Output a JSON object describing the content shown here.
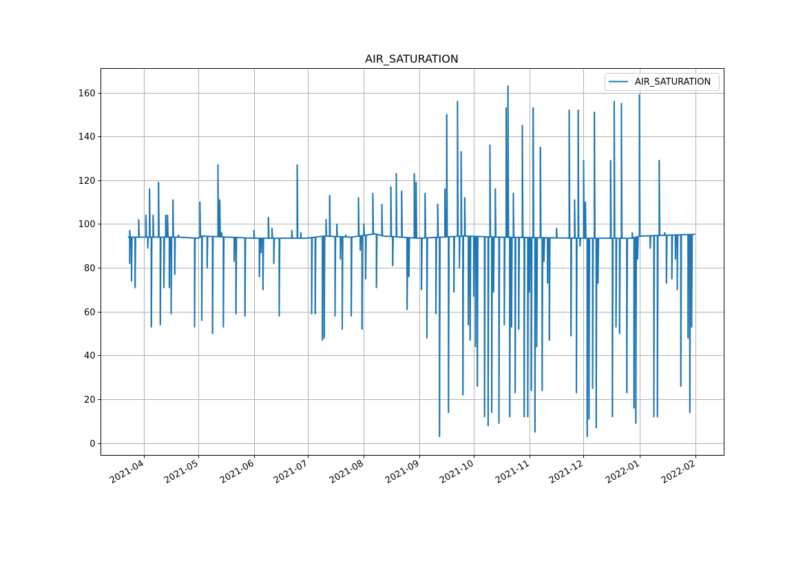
{
  "chart_data": {
    "type": "line",
    "title": "AIR_SATURATION",
    "xlabel": "",
    "ylabel": "",
    "xlim": [
      "2021-03-08",
      "2022-02-17"
    ],
    "ylim": [
      -5.6,
      171
    ],
    "grid": true,
    "legend": {
      "placement": "top-right",
      "entries": [
        "AIR_SATURATION"
      ]
    },
    "color": "#1f77b4",
    "x_ticks": [
      {
        "date": "2021-04-01",
        "label": "2021-04"
      },
      {
        "date": "2021-05-01",
        "label": "2021-05"
      },
      {
        "date": "2021-06-01",
        "label": "2021-06"
      },
      {
        "date": "2021-07-01",
        "label": "2021-07"
      },
      {
        "date": "2021-08-01",
        "label": "2021-08"
      },
      {
        "date": "2021-09-01",
        "label": "2021-09"
      },
      {
        "date": "2021-10-01",
        "label": "2021-10"
      },
      {
        "date": "2021-11-01",
        "label": "2021-11"
      },
      {
        "date": "2021-12-01",
        "label": "2021-12"
      },
      {
        "date": "2022-01-01",
        "label": "2022-01"
      },
      {
        "date": "2022-02-01",
        "label": "2022-02"
      }
    ],
    "y_ticks": [
      {
        "value": 0,
        "label": "0"
      },
      {
        "value": 20,
        "label": "20"
      },
      {
        "value": 40,
        "label": "40"
      },
      {
        "value": 60,
        "label": "60"
      },
      {
        "value": 80,
        "label": "80"
      },
      {
        "value": 100,
        "label": "100"
      },
      {
        "value": 120,
        "label": "120"
      },
      {
        "value": 140,
        "label": "140"
      },
      {
        "value": 160,
        "label": "160"
      }
    ],
    "series": [
      {
        "name": "AIR_SATURATION",
        "baseline": [
          [
            "2021-03-23",
            94
          ],
          [
            "2021-04-20",
            94
          ],
          [
            "2021-05-01",
            93.5
          ],
          [
            "2021-05-03",
            94.5
          ],
          [
            "2021-06-01",
            93.5
          ],
          [
            "2021-06-30",
            93.5
          ],
          [
            "2021-07-10",
            94.5
          ],
          [
            "2021-07-25",
            94
          ],
          [
            "2021-08-07",
            95.5
          ],
          [
            "2021-08-12",
            94.5
          ],
          [
            "2021-08-31",
            93.5
          ],
          [
            "2021-09-25",
            94.5
          ],
          [
            "2021-10-15",
            94
          ],
          [
            "2021-11-30",
            93.5
          ],
          [
            "2021-12-28",
            93.5
          ],
          [
            "2022-01-01",
            94.5
          ],
          [
            "2022-02-01",
            95.3
          ]
        ],
        "spikes": [
          [
            "2021-03-24",
            97
          ],
          [
            "2021-03-24",
            82
          ],
          [
            "2021-03-25",
            74
          ],
          [
            "2021-03-27",
            71
          ],
          [
            "2021-03-29",
            102
          ],
          [
            "2021-04-02",
            104
          ],
          [
            "2021-04-03",
            89
          ],
          [
            "2021-04-04",
            116
          ],
          [
            "2021-04-05",
            53
          ],
          [
            "2021-04-06",
            104
          ],
          [
            "2021-04-09",
            119
          ],
          [
            "2021-04-10",
            54
          ],
          [
            "2021-04-12",
            71
          ],
          [
            "2021-04-13",
            104
          ],
          [
            "2021-04-14",
            104
          ],
          [
            "2021-04-15",
            71
          ],
          [
            "2021-04-16",
            59
          ],
          [
            "2021-04-17",
            111
          ],
          [
            "2021-04-18",
            77
          ],
          [
            "2021-04-20",
            95
          ],
          [
            "2021-04-29",
            53
          ],
          [
            "2021-05-02",
            110
          ],
          [
            "2021-05-03",
            56
          ],
          [
            "2021-05-06",
            80
          ],
          [
            "2021-05-09",
            50
          ],
          [
            "2021-05-12",
            127
          ],
          [
            "2021-05-13",
            111
          ],
          [
            "2021-05-14",
            96
          ],
          [
            "2021-05-15",
            53
          ],
          [
            "2021-05-21",
            83
          ],
          [
            "2021-05-22",
            59
          ],
          [
            "2021-05-27",
            58
          ],
          [
            "2021-06-01",
            97
          ],
          [
            "2021-06-04",
            76
          ],
          [
            "2021-06-05",
            87
          ],
          [
            "2021-06-06",
            70
          ],
          [
            "2021-06-09",
            103
          ],
          [
            "2021-06-11",
            98
          ],
          [
            "2021-06-12",
            82
          ],
          [
            "2021-06-15",
            58
          ],
          [
            "2021-06-22",
            97
          ],
          [
            "2021-06-25",
            127
          ],
          [
            "2021-06-27",
            96
          ],
          [
            "2021-07-03",
            59
          ],
          [
            "2021-07-05",
            59
          ],
          [
            "2021-07-09",
            47
          ],
          [
            "2021-07-10",
            48
          ],
          [
            "2021-07-11",
            102
          ],
          [
            "2021-07-13",
            113
          ],
          [
            "2021-07-16",
            58
          ],
          [
            "2021-07-17",
            100
          ],
          [
            "2021-07-19",
            84
          ],
          [
            "2021-07-20",
            52
          ],
          [
            "2021-07-22",
            95
          ],
          [
            "2021-07-25",
            58
          ],
          [
            "2021-07-29",
            112
          ],
          [
            "2021-07-30",
            88
          ],
          [
            "2021-07-31",
            52
          ],
          [
            "2021-08-01",
            100
          ],
          [
            "2021-08-02",
            75
          ],
          [
            "2021-08-06",
            114
          ],
          [
            "2021-08-08",
            71
          ],
          [
            "2021-08-11",
            109
          ],
          [
            "2021-08-16",
            117
          ],
          [
            "2021-08-17",
            81
          ],
          [
            "2021-08-19",
            123
          ],
          [
            "2021-08-22",
            115
          ],
          [
            "2021-08-25",
            61
          ],
          [
            "2021-08-26",
            76
          ],
          [
            "2021-08-29",
            123
          ],
          [
            "2021-08-30",
            119
          ],
          [
            "2021-09-02",
            70
          ],
          [
            "2021-09-04",
            114
          ],
          [
            "2021-09-05",
            48
          ],
          [
            "2021-09-10",
            59
          ],
          [
            "2021-09-11",
            109
          ],
          [
            "2021-09-12",
            3
          ],
          [
            "2021-09-15",
            116
          ],
          [
            "2021-09-16",
            150
          ],
          [
            "2021-09-17",
            14
          ],
          [
            "2021-09-20",
            69
          ],
          [
            "2021-09-22",
            156
          ],
          [
            "2021-09-23",
            80
          ],
          [
            "2021-09-24",
            133
          ],
          [
            "2021-09-25",
            22
          ],
          [
            "2021-09-26",
            112
          ],
          [
            "2021-09-28",
            54
          ],
          [
            "2021-09-29",
            47
          ],
          [
            "2021-10-01",
            67
          ],
          [
            "2021-10-02",
            44
          ],
          [
            "2021-10-03",
            26
          ],
          [
            "2021-10-07",
            12
          ],
          [
            "2021-10-09",
            8
          ],
          [
            "2021-10-10",
            136
          ],
          [
            "2021-10-11",
            14
          ],
          [
            "2021-10-12",
            69
          ],
          [
            "2021-10-13",
            116
          ],
          [
            "2021-10-15",
            9
          ],
          [
            "2021-10-18",
            54
          ],
          [
            "2021-10-19",
            153
          ],
          [
            "2021-10-20",
            163
          ],
          [
            "2021-10-21",
            47
          ],
          [
            "2021-10-21",
            12
          ],
          [
            "2021-10-22",
            53
          ],
          [
            "2021-10-23",
            114
          ],
          [
            "2021-10-24",
            23
          ],
          [
            "2021-10-26",
            52
          ],
          [
            "2021-10-28",
            145
          ],
          [
            "2021-10-29",
            12
          ],
          [
            "2021-10-31",
            12
          ],
          [
            "2021-11-01",
            69
          ],
          [
            "2021-11-02",
            24
          ],
          [
            "2021-11-03",
            153
          ],
          [
            "2021-11-04",
            5
          ],
          [
            "2021-11-05",
            44
          ],
          [
            "2021-11-07",
            135
          ],
          [
            "2021-11-08",
            24
          ],
          [
            "2021-11-09",
            83
          ],
          [
            "2021-11-11",
            73
          ],
          [
            "2021-11-12",
            47
          ],
          [
            "2021-11-16",
            98
          ],
          [
            "2021-11-23",
            152
          ],
          [
            "2021-11-24",
            49
          ],
          [
            "2021-11-26",
            111
          ],
          [
            "2021-11-27",
            23
          ],
          [
            "2021-11-28",
            152
          ],
          [
            "2021-11-29",
            90
          ],
          [
            "2021-12-01",
            129
          ],
          [
            "2021-12-02",
            110
          ],
          [
            "2021-12-03",
            3
          ],
          [
            "2021-12-04",
            11
          ],
          [
            "2021-12-06",
            25
          ],
          [
            "2021-12-07",
            151
          ],
          [
            "2021-12-08",
            7
          ],
          [
            "2021-12-09",
            73
          ],
          [
            "2021-12-16",
            129
          ],
          [
            "2021-12-17",
            12
          ],
          [
            "2021-12-18",
            156
          ],
          [
            "2021-12-19",
            53
          ],
          [
            "2021-12-21",
            50
          ],
          [
            "2021-12-22",
            155
          ],
          [
            "2021-12-25",
            23
          ],
          [
            "2021-12-28",
            96
          ],
          [
            "2021-12-29",
            16
          ],
          [
            "2021-12-30",
            9
          ],
          [
            "2021-12-31",
            84
          ],
          [
            "2022-01-01",
            159
          ],
          [
            "2022-01-07",
            89
          ],
          [
            "2022-01-09",
            12
          ],
          [
            "2022-01-11",
            12
          ],
          [
            "2022-01-12",
            129
          ],
          [
            "2022-01-15",
            96
          ],
          [
            "2022-01-16",
            73
          ],
          [
            "2022-01-19",
            75
          ],
          [
            "2022-01-21",
            84
          ],
          [
            "2022-01-22",
            70
          ],
          [
            "2022-01-24",
            26
          ],
          [
            "2022-01-28",
            48
          ],
          [
            "2022-01-29",
            14
          ],
          [
            "2022-01-30",
            53
          ]
        ]
      }
    ]
  }
}
